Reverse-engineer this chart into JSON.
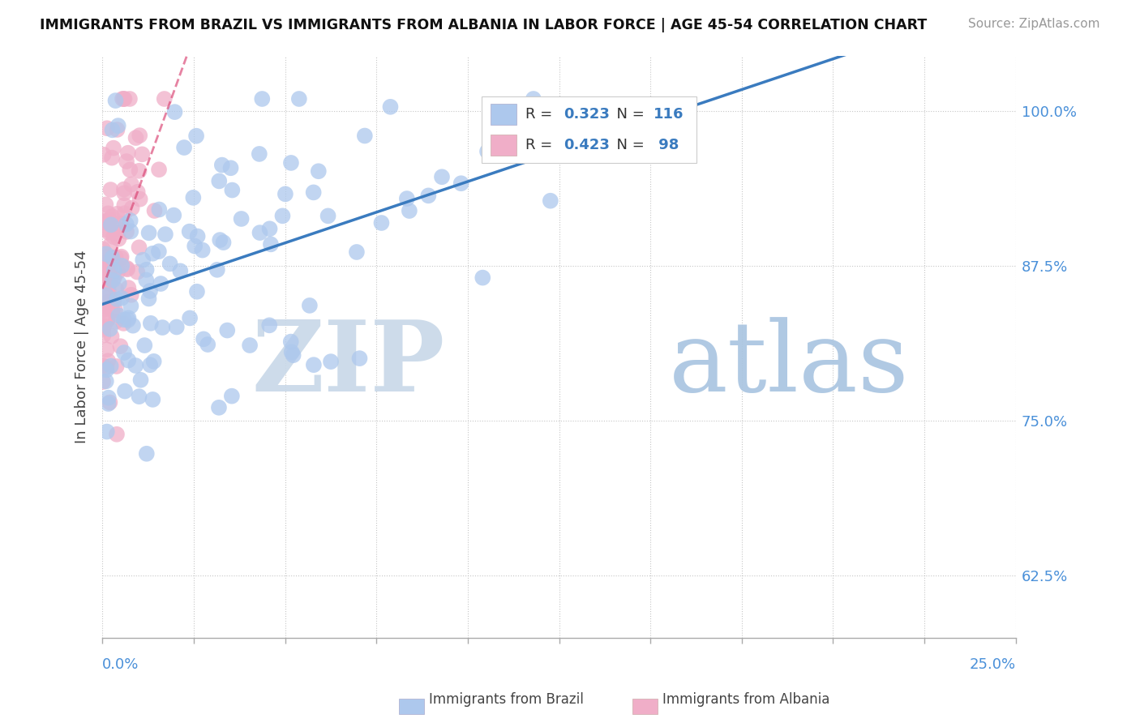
{
  "title": "IMMIGRANTS FROM BRAZIL VS IMMIGRANTS FROM ALBANIA IN LABOR FORCE | AGE 45-54 CORRELATION CHART",
  "source": "Source: ZipAtlas.com",
  "ylabel": "In Labor Force | Age 45-54",
  "ytick_labels": [
    "62.5%",
    "75.0%",
    "87.5%",
    "100.0%"
  ],
  "ytick_values": [
    0.625,
    0.75,
    0.875,
    1.0
  ],
  "xmin": 0.0,
  "xmax": 0.25,
  "ymin": 0.575,
  "ymax": 1.045,
  "brazil_color": "#adc8ed",
  "albania_color": "#f0aec8",
  "brazil_line_color": "#3a7bbf",
  "albania_line_color": "#d94070",
  "watermark_zip": "ZIP",
  "watermark_atlas": "atlas",
  "watermark_zip_color": "#c8d8e8",
  "watermark_atlas_color": "#a8c4e0",
  "brazil_R": 0.323,
  "brazil_N": 116,
  "albania_R": 0.423,
  "albania_N": 98
}
